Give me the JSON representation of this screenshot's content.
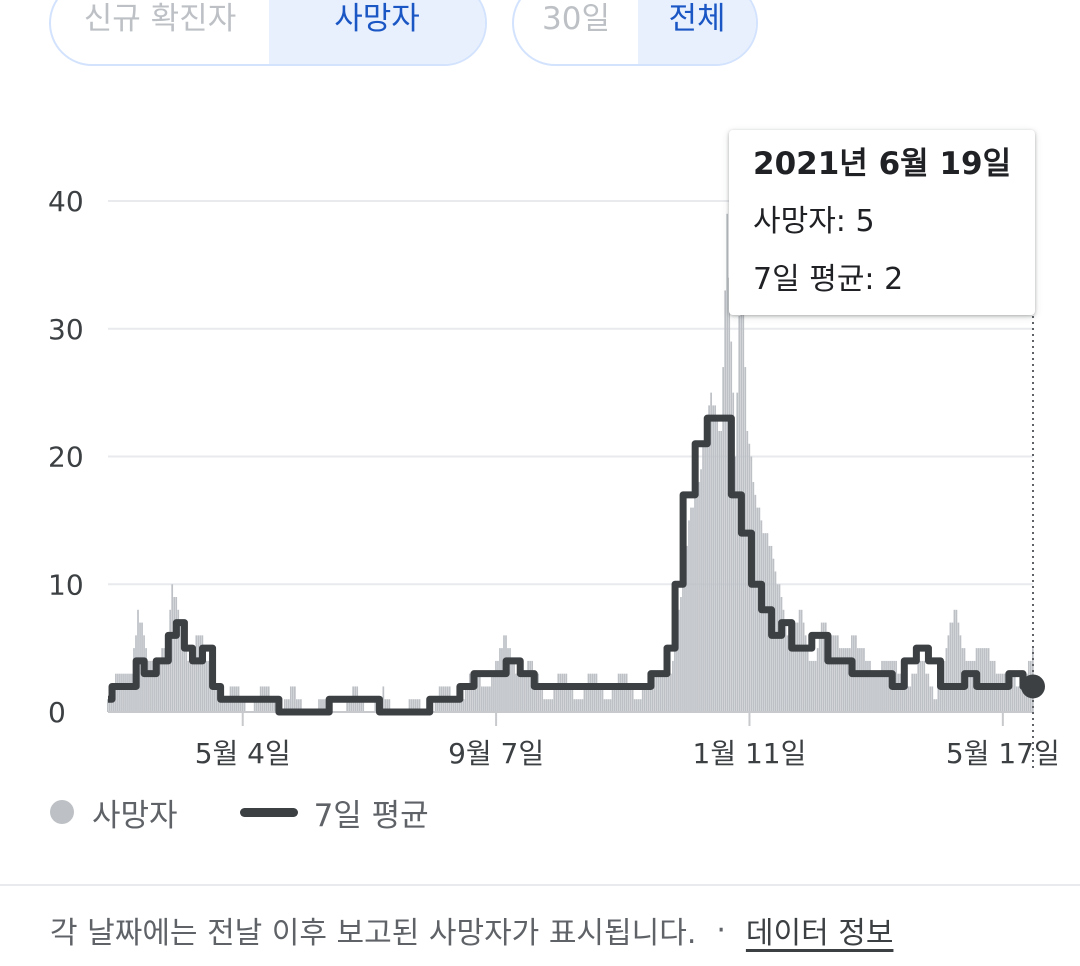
{
  "tabs": {
    "metric": [
      {
        "label": "신규 확진자",
        "active": false
      },
      {
        "label": "사망자",
        "active": true
      }
    ],
    "range": [
      {
        "label": "30일",
        "active": false
      },
      {
        "label": "전체",
        "active": true
      }
    ]
  },
  "tooltip": {
    "date": "2021년 6월 19일",
    "deaths": "사망자: 5",
    "avg": "7일 평균: 2"
  },
  "legend": {
    "deaths": "사망자",
    "avg": "7일 평균"
  },
  "footer": {
    "note": "각 날짜에는 전날 이후 보고된 사망자가 표시됩니다.",
    "separator": "·",
    "link": "데이터 정보"
  },
  "colors": {
    "bars": "#bdc1c6",
    "avg_line": "#3c4043",
    "grid": "#e8eaed",
    "accent": "#1a56c4"
  },
  "chart_data": {
    "type": "bar",
    "title": "",
    "xlabel": "",
    "ylabel": "",
    "ylim": [
      0,
      40
    ],
    "yticks": [
      0,
      10,
      20,
      30,
      40
    ],
    "xticks": [
      {
        "day": 67,
        "label": "5월 4일"
      },
      {
        "day": 193,
        "label": "9월 7일"
      },
      {
        "day": 319,
        "label": "1월 11일"
      },
      {
        "day": 445,
        "label": "5월 17일"
      }
    ],
    "x_start": "2020-02-27",
    "x_end": "2021-06-19",
    "grid": true,
    "legend_position": "bottom-left",
    "series": [
      {
        "name": "사망자",
        "type": "bar",
        "keypoints": [
          [
            0,
            1
          ],
          [
            5,
            2
          ],
          [
            12,
            4
          ],
          [
            15,
            8
          ],
          [
            20,
            3
          ],
          [
            25,
            5
          ],
          [
            30,
            6
          ],
          [
            32,
            9
          ],
          [
            35,
            7
          ],
          [
            40,
            5
          ],
          [
            45,
            6
          ],
          [
            50,
            3
          ],
          [
            55,
            2
          ],
          [
            60,
            1
          ],
          [
            70,
            1
          ],
          [
            90,
            1
          ],
          [
            100,
            0
          ],
          [
            130,
            1
          ],
          [
            150,
            0
          ],
          [
            180,
            2
          ],
          [
            190,
            3
          ],
          [
            198,
            5
          ],
          [
            205,
            4
          ],
          [
            215,
            2
          ],
          [
            240,
            2
          ],
          [
            270,
            2
          ],
          [
            280,
            4
          ],
          [
            285,
            8
          ],
          [
            290,
            16
          ],
          [
            295,
            20
          ],
          [
            300,
            24
          ],
          [
            305,
            22
          ],
          [
            308,
            40
          ],
          [
            312,
            20
          ],
          [
            315,
            35
          ],
          [
            318,
            22
          ],
          [
            322,
            18
          ],
          [
            328,
            13
          ],
          [
            335,
            9
          ],
          [
            340,
            6
          ],
          [
            345,
            7
          ],
          [
            350,
            4
          ],
          [
            355,
            7
          ],
          [
            360,
            5
          ],
          [
            370,
            6
          ],
          [
            375,
            4
          ],
          [
            385,
            4
          ],
          [
            395,
            3
          ],
          [
            405,
            3
          ],
          [
            412,
            2
          ],
          [
            418,
            5
          ],
          [
            422,
            8
          ],
          [
            425,
            6
          ],
          [
            430,
            4
          ],
          [
            440,
            5
          ],
          [
            445,
            3
          ],
          [
            452,
            2
          ],
          [
            460,
            5
          ]
        ]
      },
      {
        "name": "7일 평균",
        "type": "line",
        "keypoints": [
          [
            0,
            1
          ],
          [
            2,
            2
          ],
          [
            8,
            2
          ],
          [
            14,
            4
          ],
          [
            18,
            3
          ],
          [
            24,
            4
          ],
          [
            30,
            6
          ],
          [
            34,
            7
          ],
          [
            38,
            5
          ],
          [
            42,
            4
          ],
          [
            47,
            5
          ],
          [
            52,
            2
          ],
          [
            56,
            1
          ],
          [
            78,
            1
          ],
          [
            85,
            0
          ],
          [
            100,
            0
          ],
          [
            110,
            1
          ],
          [
            130,
            1
          ],
          [
            135,
            0
          ],
          [
            150,
            0
          ],
          [
            160,
            1
          ],
          [
            175,
            2
          ],
          [
            182,
            3
          ],
          [
            190,
            3
          ],
          [
            198,
            4
          ],
          [
            205,
            3
          ],
          [
            212,
            2
          ],
          [
            235,
            2
          ],
          [
            260,
            2
          ],
          [
            270,
            3
          ],
          [
            278,
            5
          ],
          [
            282,
            10
          ],
          [
            286,
            17
          ],
          [
            292,
            21
          ],
          [
            298,
            23
          ],
          [
            305,
            23
          ],
          [
            310,
            17
          ],
          [
            315,
            14
          ],
          [
            320,
            10
          ],
          [
            325,
            8
          ],
          [
            330,
            6
          ],
          [
            335,
            7
          ],
          [
            340,
            5
          ],
          [
            350,
            6
          ],
          [
            358,
            4
          ],
          [
            365,
            4
          ],
          [
            370,
            3
          ],
          [
            380,
            3
          ],
          [
            390,
            2
          ],
          [
            396,
            4
          ],
          [
            402,
            5
          ],
          [
            408,
            4
          ],
          [
            414,
            2
          ],
          [
            420,
            2
          ],
          [
            426,
            3
          ],
          [
            432,
            2
          ],
          [
            440,
            2
          ],
          [
            448,
            3
          ],
          [
            455,
            2
          ],
          [
            460,
            2
          ]
        ]
      }
    ]
  }
}
